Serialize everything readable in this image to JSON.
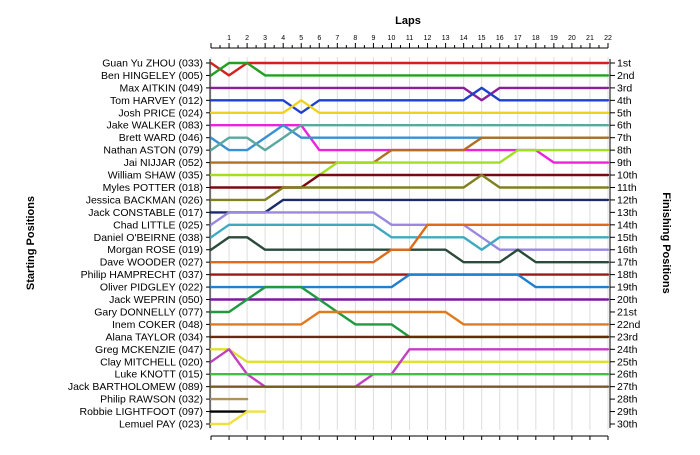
{
  "chart_data": {
    "type": "line",
    "title": "",
    "x_axis_title": "Laps",
    "left_axis_title": "Starting Positions",
    "right_axis_title": "Finishing Positions",
    "laps": [
      "1",
      "2",
      "3",
      "4",
      "5",
      "6",
      "7",
      "8",
      "9",
      "10",
      "11",
      "12",
      "13",
      "14",
      "15",
      "16",
      "17",
      "18",
      "19",
      "20",
      "21",
      "22"
    ],
    "starting_grid": [
      "Guan Yu ZHOU (033)",
      "Ben HINGELEY (005)",
      "Max AITKIN (049)",
      "Tom HARVEY (012)",
      "Josh PRICE (024)",
      "Jake WALKER (083)",
      "Brett WARD (046)",
      "Nathan ASTON (079)",
      "Jai NIJJAR (052)",
      "William SHAW (035)",
      "Myles POTTER (018)",
      "Jessica BACKMAN (026)",
      "Jack CONSTABLE (017)",
      "Chad LITTLE (025)",
      "Daniel O'BEIRNE (038)",
      "Morgan ROSE (019)",
      "Dave WOODER (027)",
      "Philip HAMPRECHT (037)",
      "Oliver PIDGLEY (022)",
      "Jack WEPRIN (050)",
      "Gary DONNELLY (077)",
      "Inem COKER (048)",
      "Alana TAYLOR (034)",
      "Greg MCKENZIE (047)",
      "Clay MITCHELL (020)",
      "Luke KNOTT (015)",
      "Jack BARTHOLOMEW (089)",
      "Philip RAWSON (032)",
      "Robbie LIGHTFOOT (097)",
      "Lemuel PAY (023)"
    ],
    "finishing_positions": [
      "1st",
      "2nd",
      "3rd",
      "4th",
      "5th",
      "6th",
      "7th",
      "8th",
      "9th",
      "10th",
      "11th",
      "12th",
      "13th",
      "14th",
      "15th",
      "16th",
      "17th",
      "18th",
      "19th",
      "20th",
      "21st",
      "22nd",
      "23rd",
      "24th",
      "25th",
      "26th",
      "27th",
      "28th",
      "29th",
      "30th"
    ],
    "series": [
      {
        "color": "#d62020",
        "values": [
          1,
          2,
          1,
          1,
          1,
          1,
          1,
          1,
          1,
          1,
          1,
          1,
          1,
          1,
          1,
          1,
          1,
          1,
          1,
          1,
          1,
          1,
          1
        ]
      },
      {
        "color": "#22a022",
        "values": [
          2,
          1,
          1,
          2,
          2,
          2,
          2,
          2,
          2,
          2,
          2,
          2,
          2,
          2,
          2,
          2,
          2,
          2,
          2,
          2,
          2,
          2,
          2
        ]
      },
      {
        "color": "#8a1f9a",
        "values": [
          3,
          3,
          3,
          3,
          3,
          3,
          3,
          3,
          3,
          3,
          3,
          3,
          3,
          3,
          3,
          4,
          3,
          3,
          3,
          3,
          3,
          3,
          3
        ]
      },
      {
        "color": "#1f3fcf",
        "values": [
          4,
          4,
          4,
          4,
          4,
          5,
          4,
          4,
          4,
          4,
          4,
          4,
          4,
          4,
          4,
          3,
          4,
          4,
          4,
          4,
          4,
          4,
          4
        ]
      },
      {
        "color": "#f0d020",
        "values": [
          5,
          5,
          5,
          5,
          5,
          4,
          5,
          5,
          5,
          5,
          5,
          5,
          5,
          5,
          5,
          5,
          5,
          5,
          5,
          5,
          5,
          5,
          5
        ]
      },
      {
        "color": "#ee22dd",
        "values": [
          6,
          6,
          6,
          6,
          6,
          6,
          8,
          8,
          8,
          8,
          8,
          8,
          8,
          8,
          8,
          8,
          8,
          8,
          8,
          9,
          9,
          9,
          9
        ]
      },
      {
        "color": "#3a90d0",
        "values": [
          7,
          8,
          8,
          7,
          6,
          7,
          7,
          7,
          7,
          7,
          7,
          7,
          7,
          7,
          7,
          7,
          7,
          7,
          7,
          7,
          7,
          7,
          7
        ]
      },
      {
        "color": "#5aa8a0",
        "values": [
          8,
          7,
          7,
          8,
          7,
          6,
          6,
          6,
          6,
          6,
          6,
          6,
          6,
          6,
          6,
          6,
          6,
          6,
          6,
          6,
          6,
          6,
          6
        ]
      },
      {
        "color": "#b07020",
        "values": [
          9,
          9,
          9,
          9,
          9,
          9,
          9,
          9,
          9,
          9,
          8,
          8,
          8,
          8,
          8,
          7,
          7,
          7,
          7,
          7,
          7,
          7,
          7
        ]
      },
      {
        "color": "#a0e020",
        "values": [
          10,
          10,
          10,
          10,
          10,
          10,
          10,
          9,
          9,
          9,
          9,
          9,
          9,
          9,
          9,
          9,
          9,
          8,
          8,
          8,
          8,
          8,
          8
        ]
      },
      {
        "color": "#7a0a10",
        "values": [
          11,
          11,
          11,
          11,
          11,
          11,
          10,
          10,
          10,
          10,
          10,
          10,
          10,
          10,
          10,
          10,
          10,
          10,
          10,
          10,
          10,
          10,
          10
        ]
      },
      {
        "color": "#808020",
        "values": [
          12,
          12,
          12,
          12,
          11,
          11,
          11,
          11,
          11,
          11,
          11,
          11,
          11,
          11,
          11,
          10,
          11,
          11,
          11,
          11,
          11,
          11,
          11
        ]
      },
      {
        "color": "#1a2a6a",
        "values": [
          13,
          13,
          13,
          13,
          12,
          12,
          12,
          12,
          12,
          12,
          12,
          12,
          12,
          12,
          12,
          12,
          12,
          12,
          12,
          12,
          12,
          12,
          12
        ]
      },
      {
        "color": "#9a88e0",
        "values": [
          14,
          13,
          13,
          13,
          13,
          13,
          13,
          13,
          13,
          13,
          14,
          14,
          14,
          14,
          14,
          15,
          16,
          16,
          16,
          16,
          16,
          16,
          16
        ]
      },
      {
        "color": "#40a8c0",
        "values": [
          15,
          14,
          14,
          14,
          14,
          14,
          14,
          14,
          14,
          14,
          15,
          15,
          15,
          15,
          15,
          16,
          15,
          15,
          15,
          15,
          15,
          15,
          15
        ]
      },
      {
        "color": "#2a4a3a",
        "values": [
          16,
          15,
          15,
          16,
          16,
          16,
          16,
          16,
          16,
          16,
          16,
          16,
          16,
          16,
          17,
          17,
          17,
          16,
          17,
          17,
          17,
          17,
          17
        ]
      },
      {
        "color": "#e06a18",
        "values": [
          17,
          17,
          17,
          17,
          17,
          17,
          17,
          17,
          17,
          17,
          16,
          16,
          14,
          14,
          14,
          14,
          14,
          14,
          14,
          14,
          14,
          14,
          14
        ]
      },
      {
        "color": "#9a1818",
        "values": [
          18,
          18,
          18,
          18,
          18,
          18,
          18,
          18,
          18,
          18,
          18,
          18,
          18,
          18,
          18,
          18,
          18,
          18,
          18,
          18,
          18,
          18,
          18
        ]
      },
      {
        "color": "#2080d0",
        "values": [
          19,
          19,
          19,
          19,
          19,
          19,
          19,
          19,
          19,
          19,
          19,
          18,
          18,
          18,
          18,
          18,
          18,
          18,
          19,
          19,
          19,
          19,
          19
        ]
      },
      {
        "color": "#7a1aa0",
        "values": [
          20,
          20,
          20,
          20,
          20,
          20,
          20,
          20,
          20,
          20,
          20,
          20,
          20,
          20,
          20,
          20,
          20,
          20,
          20,
          20,
          20,
          20,
          20
        ]
      },
      {
        "color": "#209a40",
        "values": [
          21,
          21,
          20,
          19,
          19,
          19,
          20,
          21,
          22,
          22,
          22,
          23,
          23,
          23,
          23,
          23,
          23,
          23,
          23,
          23,
          23,
          23,
          23
        ]
      },
      {
        "color": "#e07a20",
        "values": [
          22,
          22,
          22,
          22,
          22,
          22,
          21,
          21,
          21,
          21,
          21,
          21,
          21,
          21,
          22,
          22,
          22,
          22,
          22,
          22,
          22,
          22,
          22
        ]
      },
      {
        "color": "#6a2a0a",
        "values": [
          23,
          23,
          23,
          23,
          23,
          23,
          23,
          23,
          23,
          23,
          23,
          23,
          23,
          23,
          23,
          23,
          23,
          23,
          23,
          23,
          23,
          23,
          23
        ]
      },
      {
        "color": "#e0e030",
        "values": [
          24,
          24,
          25,
          25,
          25,
          25,
          25,
          25,
          25,
          25,
          25,
          25,
          25,
          25,
          25,
          25,
          25,
          25,
          25,
          25,
          25,
          25,
          25
        ]
      },
      {
        "color": "#c040c0",
        "values": [
          25,
          24,
          26,
          27,
          27,
          27,
          27,
          27,
          27,
          26,
          26,
          24,
          24,
          24,
          24,
          24,
          24,
          24,
          24,
          24,
          24,
          24,
          24
        ]
      },
      {
        "color": "#40c040",
        "values": [
          26,
          26,
          26,
          26,
          26,
          26,
          26,
          26,
          26,
          26,
          26,
          26,
          26,
          26,
          26,
          26,
          26,
          26,
          26,
          26,
          26,
          26,
          26
        ]
      },
      {
        "color": "#7a5a20",
        "values": [
          27,
          27,
          27,
          27,
          27,
          27,
          27,
          27,
          27,
          27,
          27,
          27,
          27,
          27,
          27,
          27,
          27,
          27,
          27,
          27,
          27,
          27,
          27
        ]
      },
      {
        "color": "#b09060",
        "values": [
          28,
          28,
          28
        ]
      },
      {
        "color": "#000000",
        "values": [
          29,
          29,
          29
        ]
      },
      {
        "color": "#f0e040",
        "values": [
          30,
          30,
          29,
          29
        ]
      }
    ]
  }
}
